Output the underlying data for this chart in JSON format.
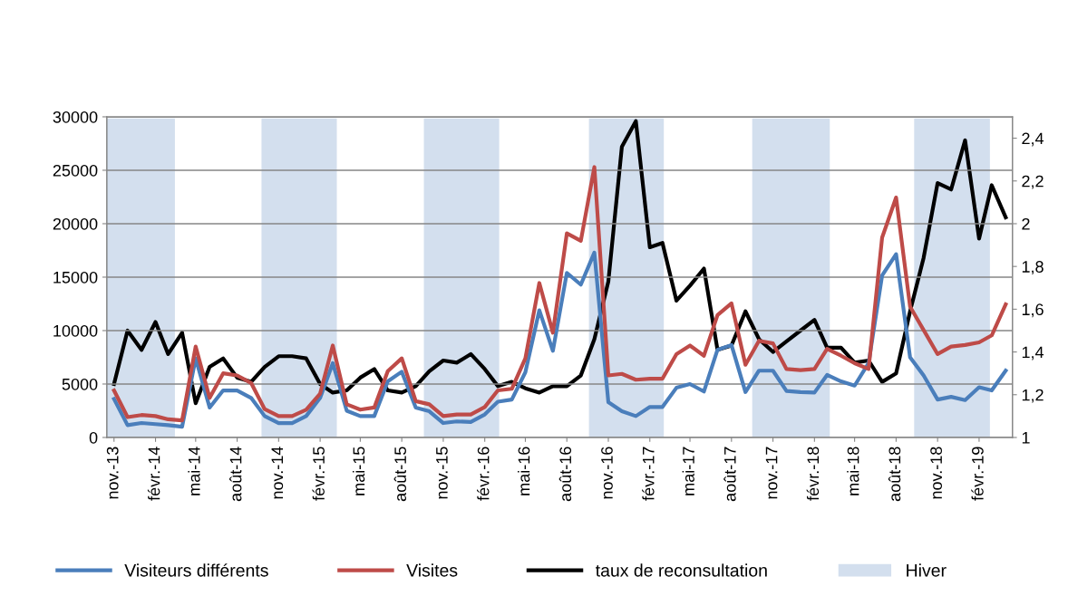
{
  "chart_data": {
    "type": "line",
    "x": [
      "2013-11",
      "2013-12",
      "2014-01",
      "2014-02",
      "2014-03",
      "2014-04",
      "2014-05",
      "2014-06",
      "2014-07",
      "2014-08",
      "2014-09",
      "2014-10",
      "2014-11",
      "2014-12",
      "2015-01",
      "2015-02",
      "2015-03",
      "2015-04",
      "2015-05",
      "2015-06",
      "2015-07",
      "2015-08",
      "2015-09",
      "2015-10",
      "2015-11",
      "2015-12",
      "2016-01",
      "2016-02",
      "2016-03",
      "2016-04",
      "2016-05",
      "2016-06",
      "2016-07",
      "2016-08",
      "2016-09",
      "2016-10",
      "2016-11",
      "2016-12",
      "2017-01",
      "2017-02",
      "2017-03",
      "2017-04",
      "2017-05",
      "2017-06",
      "2017-07",
      "2017-08",
      "2017-09",
      "2017-10",
      "2017-11",
      "2017-12",
      "2018-01",
      "2018-02",
      "2018-03",
      "2018-04",
      "2018-05",
      "2018-06",
      "2018-07",
      "2018-08",
      "2018-09",
      "2018-10",
      "2018-11",
      "2018-12",
      "2019-01",
      "2019-02",
      "2019-03",
      "2019-04"
    ],
    "series": [
      {
        "name": "Visiteurs différents",
        "color": "#4a7ebb",
        "values": [
          3600,
          1150,
          1350,
          1250,
          1150,
          1000,
          7400,
          2800,
          4400,
          4400,
          3700,
          2000,
          1350,
          1350,
          2000,
          3700,
          6950,
          2500,
          2000,
          2000,
          5250,
          6150,
          2800,
          2450,
          1350,
          1500,
          1450,
          2150,
          3350,
          3550,
          6100,
          11900,
          8100,
          15400,
          14300,
          17300,
          3300,
          2450,
          2000,
          2850,
          2850,
          4650,
          5000,
          4300,
          8200,
          8650,
          4250,
          6250,
          6250,
          4350,
          4250,
          4200,
          5850,
          5250,
          4850,
          6950,
          15150,
          17150,
          7500,
          5800,
          3550,
          3800,
          3500,
          4700,
          4400,
          6250
        ]
      },
      {
        "name": "Visites",
        "color": "#be4b48",
        "values": [
          4400,
          1900,
          2100,
          2000,
          1700,
          1600,
          8500,
          3700,
          6000,
          5800,
          5100,
          2650,
          2000,
          2000,
          2600,
          4100,
          8600,
          3100,
          2600,
          2800,
          6200,
          7400,
          3400,
          3100,
          2000,
          2150,
          2150,
          2850,
          4400,
          4550,
          7400,
          14450,
          9800,
          19100,
          18400,
          25300,
          5800,
          5950,
          5400,
          5500,
          5500,
          7800,
          8600,
          7650,
          11450,
          12550,
          6800,
          9050,
          8800,
          6400,
          6300,
          6400,
          8300,
          7650,
          6950,
          6400,
          18700,
          22450,
          12250,
          10050,
          7800,
          8500,
          8650,
          8900,
          9550,
          12450
        ]
      },
      {
        "name": "taux de reconsultation",
        "color": "#000000",
        "axis": "y2",
        "values": [
          1.25,
          1.5,
          1.41,
          1.54,
          1.39,
          1.49,
          1.16,
          1.33,
          1.37,
          1.28,
          1.26,
          1.33,
          1.38,
          1.38,
          1.37,
          1.25,
          1.21,
          1.22,
          1.28,
          1.32,
          1.22,
          1.21,
          1.24,
          1.31,
          1.36,
          1.35,
          1.39,
          1.32,
          1.24,
          1.26,
          1.23,
          1.21,
          1.24,
          1.24,
          1.29,
          1.46,
          1.73,
          2.36,
          2.48,
          1.89,
          1.91,
          1.64,
          1.71,
          1.79,
          1.41,
          1.43,
          1.59,
          1.46,
          1.4,
          1.45,
          1.5,
          1.55,
          1.42,
          1.42,
          1.35,
          1.36,
          1.26,
          1.3,
          1.59,
          1.84,
          2.19,
          2.16,
          2.39,
          1.93,
          2.18,
          2.03
        ]
      }
    ],
    "bands": [
      {
        "axis": "x",
        "from": "2013-10-16",
        "to": "2014-03-16",
        "label": "Hiver",
        "color": "#d3dfee"
      },
      {
        "axis": "x",
        "from": "2014-09-24",
        "to": "2015-03-10",
        "color": "#d3dfee"
      },
      {
        "axis": "x",
        "from": "2015-09-19",
        "to": "2016-03-04",
        "color": "#d3dfee"
      },
      {
        "axis": "x",
        "from": "2016-09-19",
        "to": "2017-03-04",
        "color": "#d3dfee"
      },
      {
        "axis": "x",
        "from": "2017-09-16",
        "to": "2018-03-07",
        "color": "#d3dfee"
      },
      {
        "axis": "x",
        "from": "2018-09-10",
        "to": "2019-02-25",
        "color": "#d3dfee"
      }
    ],
    "xlim": [
      "2013-10-16",
      "2019-04-16"
    ],
    "xticks": [
      {
        "value": "2013-11",
        "label": "nov.-13"
      },
      {
        "value": "2014-02",
        "label": "févr.-14"
      },
      {
        "value": "2014-05",
        "label": "mai-14"
      },
      {
        "value": "2014-08",
        "label": "août-14"
      },
      {
        "value": "2014-11",
        "label": "nov.-14"
      },
      {
        "value": "2015-02",
        "label": "févr.-15"
      },
      {
        "value": "2015-05",
        "label": "mai-15"
      },
      {
        "value": "2015-08",
        "label": "août-15"
      },
      {
        "value": "2015-11",
        "label": "nov.-15"
      },
      {
        "value": "2016-02",
        "label": "févr.-16"
      },
      {
        "value": "2016-05",
        "label": "mai-16"
      },
      {
        "value": "2016-08",
        "label": "août-16"
      },
      {
        "value": "2016-11",
        "label": "nov.-16"
      },
      {
        "value": "2017-02",
        "label": "févr.-17"
      },
      {
        "value": "2017-05",
        "label": "mai-17"
      },
      {
        "value": "2017-08",
        "label": "août-17"
      },
      {
        "value": "2017-11",
        "label": "nov.-17"
      },
      {
        "value": "2018-02",
        "label": "févr.-18"
      },
      {
        "value": "2018-05",
        "label": "mai-18"
      },
      {
        "value": "2018-08",
        "label": "août-18"
      },
      {
        "value": "2018-11",
        "label": "nov.-18"
      },
      {
        "value": "2019-02",
        "label": "févr.-19"
      }
    ],
    "ylim": [
      0,
      30000
    ],
    "yticks": [
      0,
      5000,
      10000,
      15000,
      20000,
      25000,
      30000
    ],
    "y2lim": [
      1,
      2.5
    ],
    "y2ticks": [
      1,
      {
        "value": 1.2,
        "label": "1,2"
      },
      {
        "value": 1.4,
        "label": "1,4"
      },
      {
        "value": 1.6,
        "label": "1,6"
      },
      {
        "value": 1.8,
        "label": "1,8"
      },
      2,
      {
        "value": 2.2,
        "label": "2,2"
      },
      {
        "value": 2.4,
        "label": "2,4"
      }
    ],
    "grid": "y",
    "legend": "bottom",
    "line_style": "solid",
    "marker": "none"
  }
}
